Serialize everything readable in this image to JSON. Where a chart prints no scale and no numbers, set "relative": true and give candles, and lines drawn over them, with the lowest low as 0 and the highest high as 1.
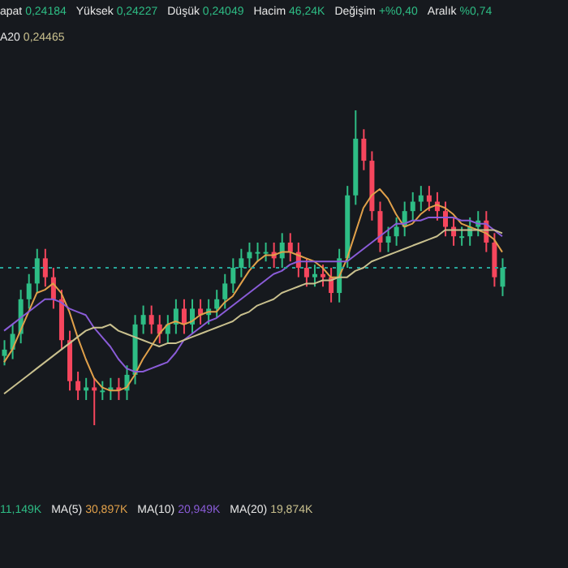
{
  "chart_data": {
    "type": "candlestick",
    "relative": true,
    "tick_labels": false,
    "categories": [
      null,
      null,
      null,
      null,
      null,
      null,
      null,
      null,
      null,
      null,
      null,
      null,
      null,
      null,
      null,
      null,
      null,
      null,
      null,
      null,
      null,
      null,
      null,
      null,
      null,
      null,
      null,
      null,
      null,
      null,
      null,
      null,
      null,
      null,
      null,
      null,
      null,
      null,
      null,
      null,
      null,
      null,
      null,
      null,
      null,
      null,
      null,
      null,
      null,
      null,
      null,
      null,
      null,
      null,
      null,
      null,
      null,
      null,
      null,
      null,
      null,
      null
    ],
    "ohlc": [
      [
        0.22,
        0.27,
        0.19,
        0.24
      ],
      [
        0.24,
        0.32,
        0.21,
        0.29
      ],
      [
        0.29,
        0.43,
        0.26,
        0.4
      ],
      [
        0.4,
        0.48,
        0.37,
        0.45
      ],
      [
        0.45,
        0.56,
        0.42,
        0.53
      ],
      [
        0.53,
        0.56,
        0.44,
        0.47
      ],
      [
        0.47,
        0.5,
        0.37,
        0.4
      ],
      [
        0.4,
        0.43,
        0.24,
        0.27
      ],
      [
        0.27,
        0.3,
        0.11,
        0.14
      ],
      [
        0.14,
        0.17,
        0.08,
        0.11
      ],
      [
        0.11,
        0.15,
        0.08,
        0.12
      ],
      [
        0.12,
        0.15,
        0,
        0.11
      ],
      [
        0.11,
        0.14,
        0.08,
        0.11
      ],
      [
        0.11,
        0.15,
        0.08,
        0.12
      ],
      [
        0.12,
        0.15,
        0.08,
        0.11
      ],
      [
        0.11,
        0.19,
        0.08,
        0.16
      ],
      [
        0.16,
        0.35,
        0.13,
        0.32
      ],
      [
        0.32,
        0.38,
        0.29,
        0.35
      ],
      [
        0.35,
        0.38,
        0.29,
        0.32
      ],
      [
        0.32,
        0.35,
        0.26,
        0.29
      ],
      [
        0.29,
        0.35,
        0.26,
        0.32
      ],
      [
        0.32,
        0.4,
        0.29,
        0.37
      ],
      [
        0.37,
        0.4,
        0.29,
        0.32
      ],
      [
        0.32,
        0.4,
        0.29,
        0.37
      ],
      [
        0.37,
        0.4,
        0.32,
        0.35
      ],
      [
        0.35,
        0.4,
        0.32,
        0.37
      ],
      [
        0.37,
        0.43,
        0.34,
        0.4
      ],
      [
        0.4,
        0.48,
        0.37,
        0.45
      ],
      [
        0.45,
        0.53,
        0.42,
        0.5
      ],
      [
        0.5,
        0.56,
        0.47,
        0.53
      ],
      [
        0.53,
        0.58,
        0.5,
        0.55
      ],
      [
        0.55,
        0.58,
        0.52,
        0.55
      ],
      [
        0.55,
        0.58,
        0.52,
        0.55
      ],
      [
        0.55,
        0.58,
        0.5,
        0.53
      ],
      [
        0.53,
        0.61,
        0.5,
        0.58
      ],
      [
        0.58,
        0.61,
        0.52,
        0.55
      ],
      [
        0.55,
        0.58,
        0.47,
        0.5
      ],
      [
        0.5,
        0.53,
        0.44,
        0.47
      ],
      [
        0.47,
        0.51,
        0.44,
        0.48
      ],
      [
        0.48,
        0.51,
        0.44,
        0.47
      ],
      [
        0.47,
        0.5,
        0.39,
        0.42
      ],
      [
        0.42,
        0.56,
        0.39,
        0.53
      ],
      [
        0.53,
        0.76,
        0.5,
        0.73
      ],
      [
        0.73,
        1,
        0.7,
        0.91
      ],
      [
        0.91,
        0.94,
        0.81,
        0.84
      ],
      [
        0.84,
        0.87,
        0.65,
        0.68
      ],
      [
        0.68,
        0.71,
        0.55,
        0.58
      ],
      [
        0.58,
        0.63,
        0.55,
        0.6
      ],
      [
        0.6,
        0.66,
        0.57,
        0.63
      ],
      [
        0.63,
        0.71,
        0.6,
        0.68
      ],
      [
        0.68,
        0.74,
        0.65,
        0.71
      ],
      [
        0.71,
        0.76,
        0.68,
        0.73
      ],
      [
        0.73,
        0.76,
        0.68,
        0.71
      ],
      [
        0.71,
        0.74,
        0.65,
        0.68
      ],
      [
        0.68,
        0.71,
        0.6,
        0.63
      ],
      [
        0.63,
        0.66,
        0.57,
        0.6
      ],
      [
        0.6,
        0.63,
        0.57,
        0.6
      ],
      [
        0.6,
        0.66,
        0.57,
        0.63
      ],
      [
        0.63,
        0.68,
        0.6,
        0.65
      ],
      [
        0.65,
        0.68,
        0.55,
        0.58
      ],
      [
        0.58,
        0.61,
        0.44,
        0.47
      ],
      [
        0.44,
        0.53,
        0.41,
        0.5
      ]
    ],
    "series": [
      {
        "type": "line",
        "color": "#e0a04a",
        "values": [
          0.2,
          0.24,
          0.3,
          0.36,
          0.42,
          0.43,
          0.45,
          0.42,
          0.36,
          0.28,
          0.21,
          0.15,
          0.12,
          0.11,
          0.11,
          0.12,
          0.16,
          0.21,
          0.25,
          0.29,
          0.32,
          0.33,
          0.32,
          0.33,
          0.35,
          0.36,
          0.36,
          0.39,
          0.41,
          0.45,
          0.49,
          0.52,
          0.54,
          0.54,
          0.55,
          0.55,
          0.54,
          0.53,
          0.52,
          0.5,
          0.47,
          0.47,
          0.53,
          0.61,
          0.69,
          0.73,
          0.75,
          0.72,
          0.67,
          0.63,
          0.64,
          0.67,
          0.69,
          0.7,
          0.69,
          0.67,
          0.64,
          0.63,
          0.62,
          0.61,
          0.59,
          0.55
        ]
      },
      {
        "type": "line",
        "color": "#8a5cd8",
        "values": [
          0.3,
          0.32,
          0.34,
          0.36,
          0.38,
          0.4,
          0.4,
          0.39,
          0.37,
          0.36,
          0.35,
          0.31,
          0.28,
          0.25,
          0.21,
          0.18,
          0.17,
          0.17,
          0.18,
          0.19,
          0.2,
          0.23,
          0.27,
          0.29,
          0.31,
          0.33,
          0.34,
          0.36,
          0.38,
          0.4,
          0.42,
          0.44,
          0.46,
          0.48,
          0.49,
          0.51,
          0.52,
          0.52,
          0.52,
          0.52,
          0.52,
          0.52,
          0.52,
          0.54,
          0.56,
          0.58,
          0.6,
          0.62,
          0.64,
          0.64,
          0.65,
          0.65,
          0.66,
          0.66,
          0.66,
          0.66,
          0.65,
          0.65,
          0.64,
          0.64,
          0.62,
          0.6
        ]
      },
      {
        "type": "line",
        "color": "#c9c08e",
        "values": [
          0.1,
          0.12,
          0.14,
          0.16,
          0.18,
          0.2,
          0.22,
          0.24,
          0.26,
          0.28,
          0.3,
          0.31,
          0.31,
          0.32,
          0.3,
          0.29,
          0.28,
          0.27,
          0.26,
          0.25,
          0.26,
          0.26,
          0.27,
          0.28,
          0.29,
          0.3,
          0.31,
          0.32,
          0.33,
          0.35,
          0.36,
          0.38,
          0.39,
          0.4,
          0.42,
          0.43,
          0.44,
          0.45,
          0.45,
          0.46,
          0.46,
          0.47,
          0.47,
          0.49,
          0.5,
          0.52,
          0.53,
          0.54,
          0.55,
          0.56,
          0.57,
          0.58,
          0.59,
          0.6,
          0.62,
          0.62,
          0.62,
          0.62,
          0.62,
          0.62,
          0.62,
          0.61
        ]
      }
    ],
    "ref_lines": [
      {
        "axis": "y",
        "value": 0.5,
        "color": "#26a69a",
        "line_style": "dotted"
      }
    ],
    "annotations": [
      "apat 0,24184",
      "Yüksek 0,24227",
      "Düşük 0,24049",
      "Hacim 46,24K",
      "Değişim +%0,40",
      "Aralık %0,74",
      "A20 0,24465",
      "11,149K",
      "MA(5) 30,897K",
      "MA(10) 20,949K",
      "MA(20) 19,874K"
    ]
  }
}
